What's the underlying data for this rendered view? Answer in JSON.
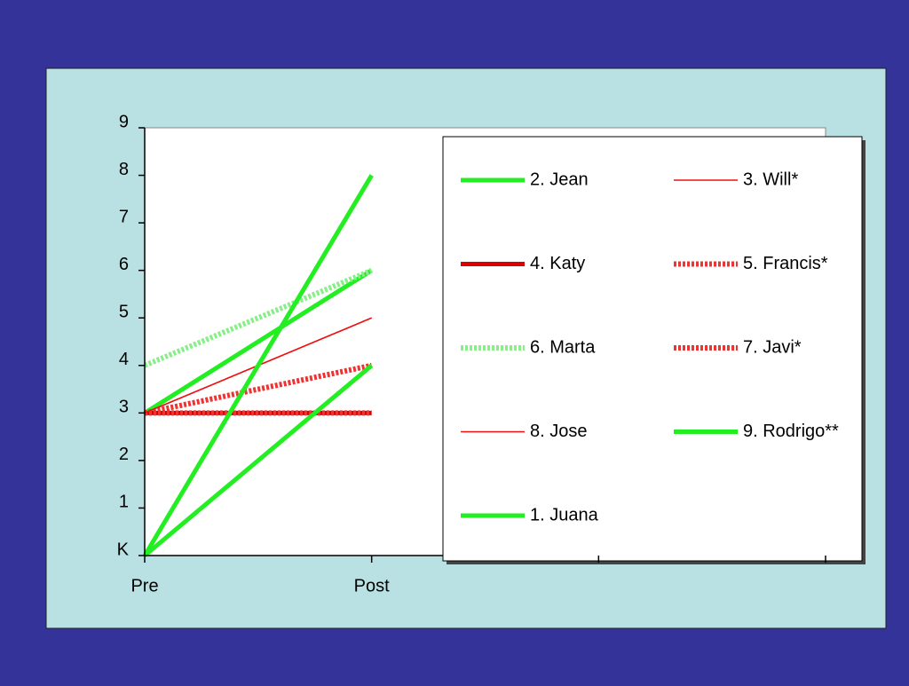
{
  "chart_data": {
    "type": "line",
    "categories": [
      "Pre",
      "Post",
      null,
      null
    ],
    "ylim": [
      0,
      9
    ],
    "yticks": [
      {
        "value": 0,
        "label": "K"
      },
      1,
      2,
      3,
      4,
      5,
      6,
      7,
      8,
      9
    ],
    "series": [
      {
        "name": "2. Jean",
        "color": "#22ee22",
        "width": 5,
        "values": [
          3,
          6,
          null,
          null
        ]
      },
      {
        "name": "3. Will*",
        "color": "#ee1111",
        "width": 1.5,
        "values": [
          3,
          5,
          null,
          null
        ]
      },
      {
        "name": "4. Katy",
        "color": "#dd0000",
        "width": 5,
        "values": [
          3,
          3,
          null,
          null
        ]
      },
      {
        "name": "5. Francis*",
        "color": "#ee3333",
        "width": 6,
        "dash": "3 2",
        "values": [
          3,
          4,
          null,
          null
        ]
      },
      {
        "name": "6. Marta",
        "color": "#88ee88",
        "width": 6,
        "dash": "3 2",
        "values": [
          4,
          6,
          null,
          null
        ]
      },
      {
        "name": "7. Javi*",
        "color": "#ee3333",
        "width": 6,
        "dash": "3 2",
        "values": [
          3,
          3,
          null,
          null
        ]
      },
      {
        "name": "8. Jose",
        "color": "#ee1111",
        "width": 1.5,
        "values": [
          3,
          5,
          null,
          null
        ]
      },
      {
        "name": "9. Rodrigo**",
        "color": "#22ee22",
        "width": 5,
        "values": [
          0,
          8,
          null,
          null
        ]
      },
      {
        "name": "1. Juana",
        "color": "#22ee22",
        "width": 5,
        "values": [
          0,
          4,
          null,
          null
        ]
      }
    ]
  }
}
